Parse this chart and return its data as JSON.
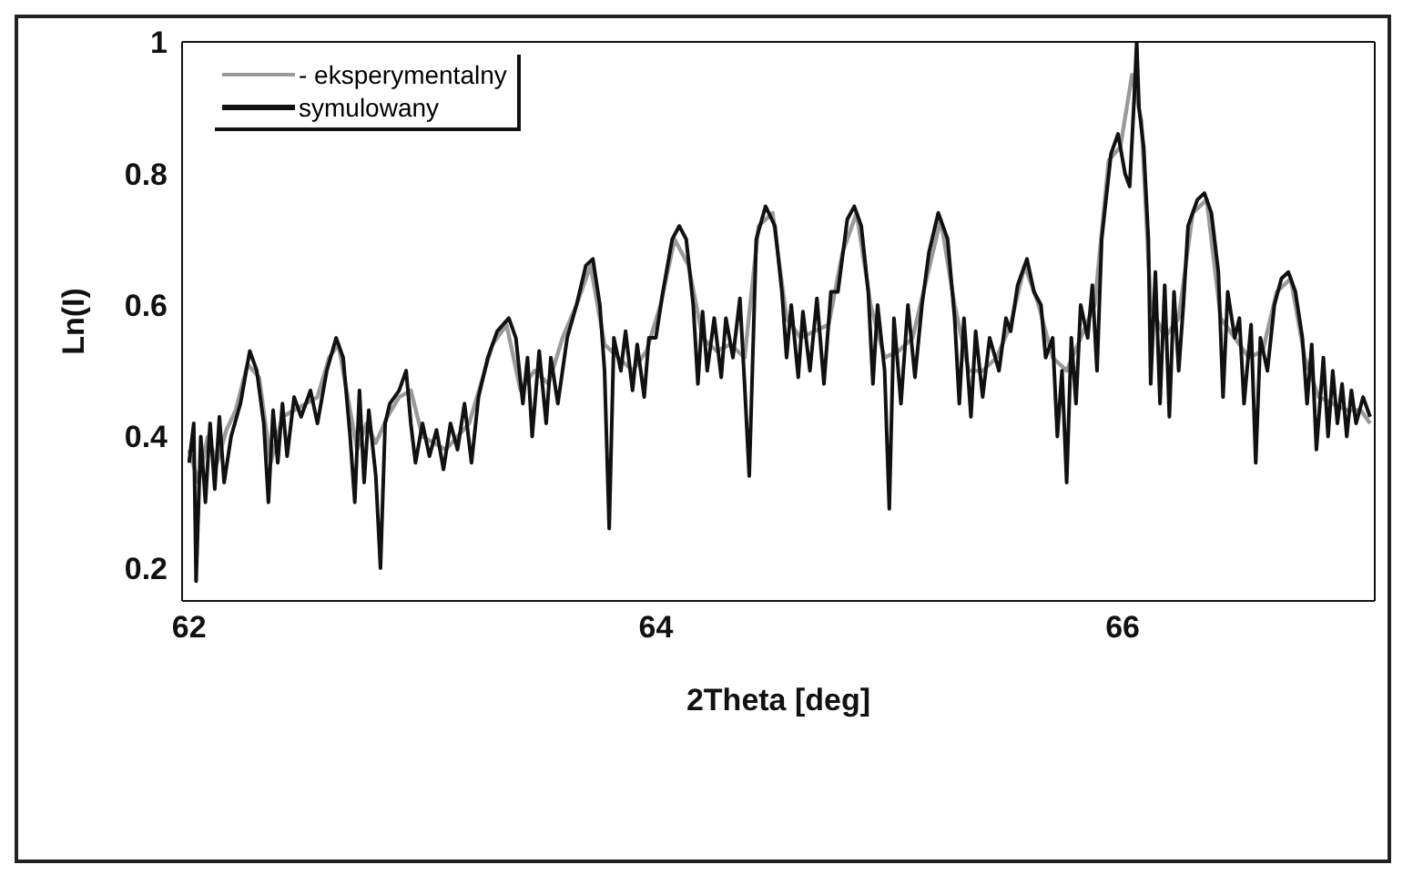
{
  "chart_data": {
    "type": "line",
    "xlabel": "2Theta [deg]",
    "ylabel": "Ln(I)",
    "xlim": [
      61.97,
      67.08
    ],
    "ylim": [
      0.15,
      1
    ],
    "xticks": [
      62,
      64,
      66
    ],
    "yticks": [
      0.2,
      0.4,
      0.6,
      0.8,
      1
    ],
    "legend": "top left",
    "marker": "none",
    "line_style": "solid",
    "series": [
      {
        "name": "- eksperymentalny",
        "color": "#9a9a9a",
        "x": [
          62.0,
          62.04,
          62.08,
          62.12,
          62.16,
          62.2,
          62.25,
          62.3,
          62.35,
          62.4,
          62.45,
          62.5,
          62.55,
          62.6,
          62.64,
          62.68,
          62.72,
          62.76,
          62.8,
          62.85,
          62.9,
          62.95,
          63.0,
          63.05,
          63.1,
          63.15,
          63.2,
          63.25,
          63.3,
          63.36,
          63.42,
          63.48,
          63.54,
          63.6,
          63.66,
          63.72,
          63.78,
          63.84,
          63.9,
          63.96,
          64.02,
          64.08,
          64.14,
          64.2,
          64.26,
          64.32,
          64.38,
          64.44,
          64.5,
          64.56,
          64.62,
          64.68,
          64.74,
          64.8,
          64.86,
          64.92,
          64.98,
          65.04,
          65.1,
          65.16,
          65.22,
          65.28,
          65.34,
          65.4,
          65.46,
          65.52,
          65.58,
          65.64,
          65.7,
          65.76,
          65.82,
          65.88,
          65.94,
          65.99,
          66.04,
          66.08,
          66.12,
          66.18,
          66.24,
          66.3,
          66.36,
          66.42,
          66.48,
          66.54,
          66.6,
          66.66,
          66.72,
          66.78,
          66.84,
          66.9,
          66.96,
          67.02,
          67.06
        ],
        "values": [
          0.38,
          0.33,
          0.4,
          0.36,
          0.41,
          0.44,
          0.51,
          0.49,
          0.36,
          0.43,
          0.44,
          0.45,
          0.46,
          0.52,
          0.54,
          0.46,
          0.38,
          0.42,
          0.39,
          0.43,
          0.46,
          0.47,
          0.4,
          0.39,
          0.38,
          0.4,
          0.42,
          0.48,
          0.54,
          0.57,
          0.47,
          0.5,
          0.48,
          0.55,
          0.6,
          0.66,
          0.54,
          0.52,
          0.5,
          0.53,
          0.6,
          0.7,
          0.66,
          0.55,
          0.53,
          0.54,
          0.52,
          0.72,
          0.74,
          0.58,
          0.55,
          0.56,
          0.57,
          0.68,
          0.74,
          0.6,
          0.52,
          0.53,
          0.55,
          0.64,
          0.73,
          0.6,
          0.5,
          0.5,
          0.52,
          0.57,
          0.66,
          0.6,
          0.52,
          0.5,
          0.55,
          0.6,
          0.82,
          0.84,
          0.95,
          0.88,
          0.6,
          0.55,
          0.58,
          0.74,
          0.76,
          0.58,
          0.55,
          0.52,
          0.53,
          0.62,
          0.64,
          0.52,
          0.46,
          0.45,
          0.44,
          0.44,
          0.42
        ]
      },
      {
        "name": "symulowany",
        "color": "#111111",
        "x": [
          62.0,
          62.02,
          62.03,
          62.05,
          62.07,
          62.09,
          62.11,
          62.13,
          62.15,
          62.18,
          62.22,
          62.26,
          62.29,
          62.32,
          62.34,
          62.36,
          62.38,
          62.4,
          62.42,
          62.45,
          62.48,
          62.52,
          62.55,
          62.59,
          62.63,
          62.66,
          62.69,
          62.71,
          62.73,
          62.75,
          62.77,
          62.8,
          62.82,
          62.84,
          62.86,
          62.9,
          62.93,
          62.95,
          62.97,
          63.0,
          63.03,
          63.06,
          63.09,
          63.12,
          63.15,
          63.18,
          63.21,
          63.24,
          63.28,
          63.32,
          63.37,
          63.4,
          63.43,
          63.45,
          63.47,
          63.5,
          63.53,
          63.55,
          63.58,
          63.62,
          63.66,
          63.7,
          63.73,
          63.76,
          63.78,
          63.8,
          63.82,
          63.85,
          63.87,
          63.9,
          63.92,
          63.95,
          63.97,
          64.0,
          64.03,
          64.07,
          64.1,
          64.13,
          64.16,
          64.18,
          64.2,
          64.22,
          64.25,
          64.28,
          64.3,
          64.33,
          64.36,
          64.38,
          64.4,
          64.43,
          64.47,
          64.51,
          64.54,
          64.56,
          64.58,
          64.61,
          64.63,
          64.66,
          64.69,
          64.72,
          64.75,
          64.78,
          64.82,
          64.85,
          64.88,
          64.91,
          64.93,
          64.95,
          64.98,
          65.0,
          65.02,
          65.05,
          65.08,
          65.11,
          65.14,
          65.17,
          65.21,
          65.25,
          65.28,
          65.3,
          65.32,
          65.35,
          65.37,
          65.4,
          65.43,
          65.47,
          65.5,
          65.52,
          65.55,
          65.59,
          65.62,
          65.65,
          65.67,
          65.7,
          65.72,
          65.74,
          65.76,
          65.78,
          65.8,
          65.82,
          65.85,
          65.87,
          65.89,
          65.91,
          65.95,
          65.98,
          66.01,
          66.03,
          66.05,
          66.06,
          66.07,
          66.09,
          66.11,
          66.12,
          66.14,
          66.16,
          66.18,
          66.2,
          66.22,
          66.24,
          66.26,
          66.28,
          66.32,
          66.35,
          66.38,
          66.41,
          66.43,
          66.45,
          66.48,
          66.5,
          66.52,
          66.55,
          66.57,
          66.59,
          66.62,
          66.65,
          66.68,
          66.71,
          66.74,
          66.77,
          66.79,
          66.81,
          66.83,
          66.86,
          66.88,
          66.9,
          66.92,
          66.94,
          66.96,
          66.98,
          67.0,
          67.03,
          67.06
        ],
        "values": [
          0.36,
          0.42,
          0.18,
          0.4,
          0.3,
          0.42,
          0.32,
          0.43,
          0.33,
          0.4,
          0.45,
          0.53,
          0.5,
          0.42,
          0.3,
          0.44,
          0.36,
          0.45,
          0.37,
          0.46,
          0.43,
          0.47,
          0.42,
          0.5,
          0.55,
          0.52,
          0.4,
          0.3,
          0.47,
          0.33,
          0.44,
          0.34,
          0.2,
          0.42,
          0.45,
          0.47,
          0.5,
          0.42,
          0.36,
          0.42,
          0.37,
          0.41,
          0.35,
          0.42,
          0.38,
          0.45,
          0.36,
          0.46,
          0.52,
          0.56,
          0.58,
          0.55,
          0.45,
          0.52,
          0.4,
          0.53,
          0.42,
          0.52,
          0.45,
          0.55,
          0.6,
          0.66,
          0.67,
          0.6,
          0.5,
          0.26,
          0.55,
          0.5,
          0.56,
          0.47,
          0.54,
          0.46,
          0.55,
          0.55,
          0.62,
          0.7,
          0.72,
          0.7,
          0.6,
          0.48,
          0.59,
          0.5,
          0.58,
          0.49,
          0.58,
          0.52,
          0.61,
          0.48,
          0.34,
          0.7,
          0.75,
          0.72,
          0.62,
          0.52,
          0.6,
          0.49,
          0.59,
          0.5,
          0.61,
          0.48,
          0.62,
          0.62,
          0.73,
          0.75,
          0.72,
          0.62,
          0.48,
          0.6,
          0.5,
          0.29,
          0.58,
          0.45,
          0.6,
          0.49,
          0.6,
          0.68,
          0.74,
          0.7,
          0.58,
          0.45,
          0.58,
          0.43,
          0.56,
          0.46,
          0.55,
          0.5,
          0.58,
          0.56,
          0.63,
          0.67,
          0.62,
          0.6,
          0.52,
          0.55,
          0.4,
          0.5,
          0.33,
          0.55,
          0.45,
          0.6,
          0.55,
          0.63,
          0.5,
          0.7,
          0.83,
          0.86,
          0.8,
          0.78,
          0.92,
          1.0,
          0.9,
          0.84,
          0.7,
          0.48,
          0.65,
          0.45,
          0.63,
          0.43,
          0.62,
          0.5,
          0.6,
          0.72,
          0.76,
          0.77,
          0.74,
          0.65,
          0.46,
          0.62,
          0.55,
          0.58,
          0.45,
          0.57,
          0.36,
          0.55,
          0.5,
          0.6,
          0.64,
          0.65,
          0.62,
          0.55,
          0.45,
          0.54,
          0.38,
          0.52,
          0.4,
          0.5,
          0.42,
          0.48,
          0.4,
          0.47,
          0.42,
          0.46,
          0.43
        ]
      }
    ]
  }
}
